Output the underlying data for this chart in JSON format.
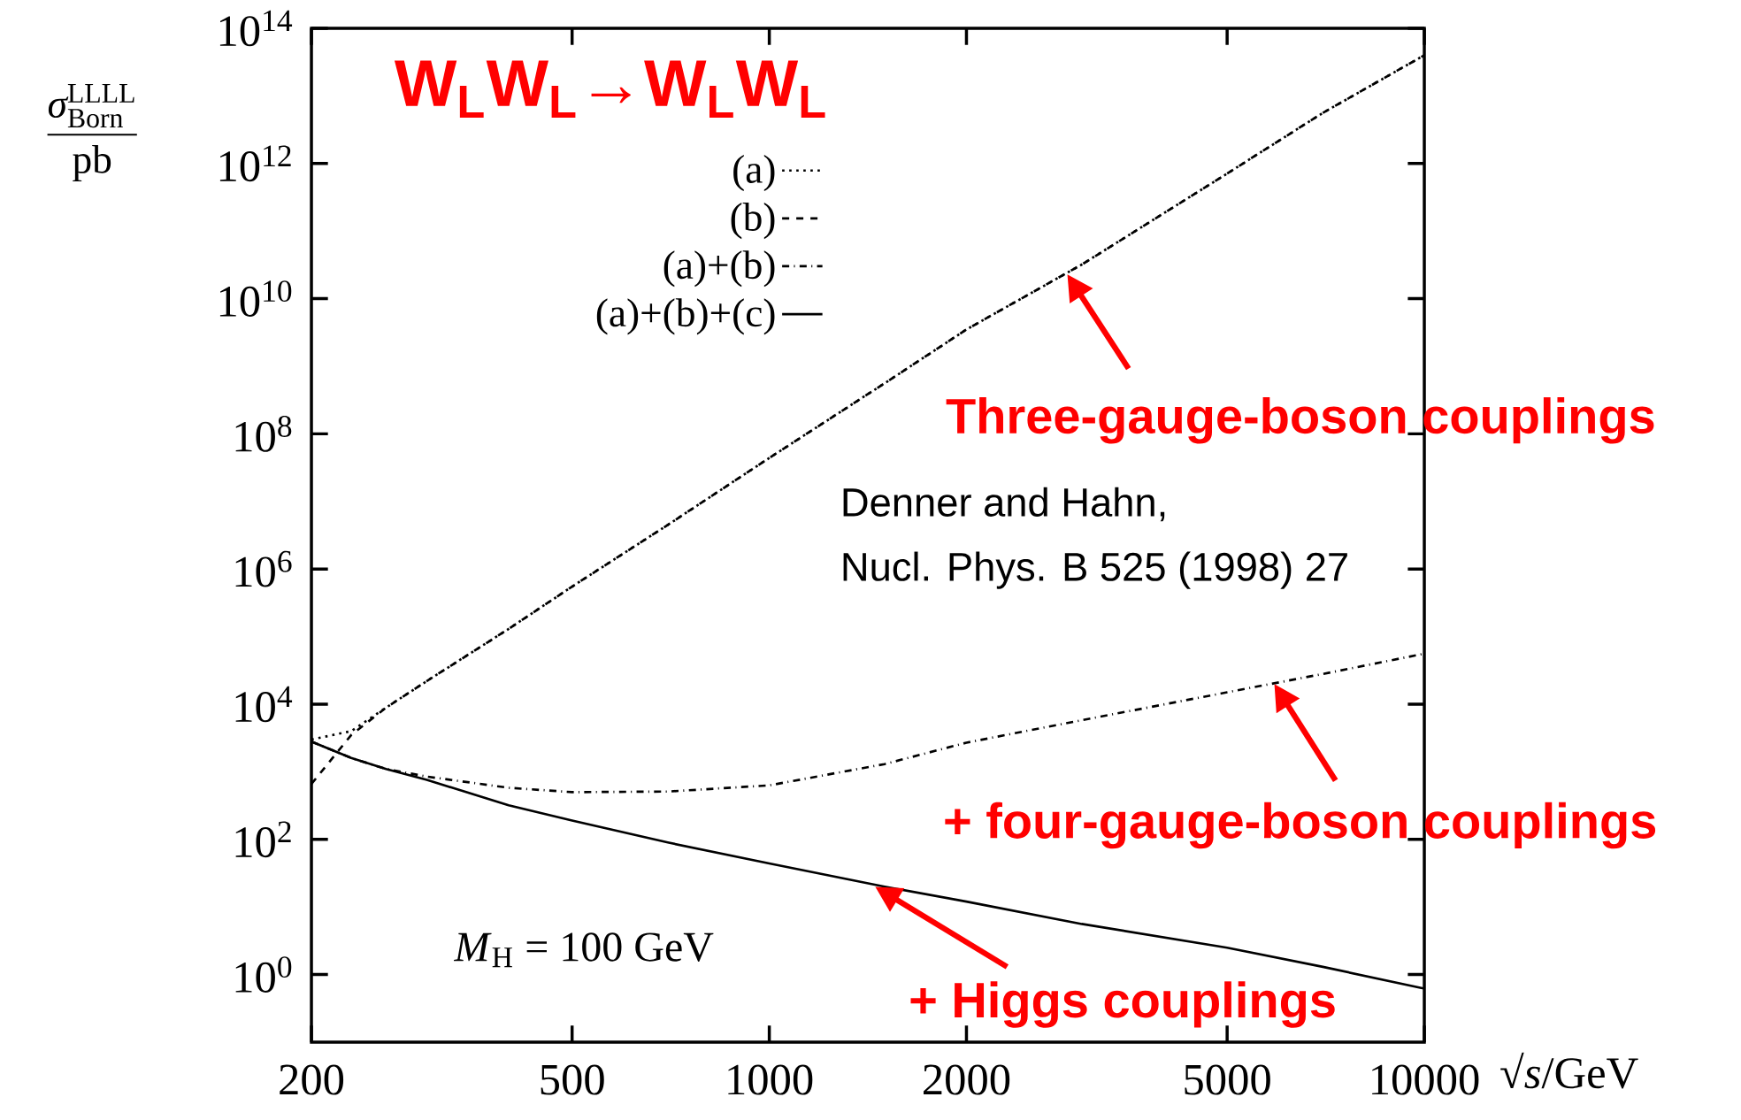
{
  "chart_data": {
    "type": "line",
    "title": "W$_{L}$W$_{L}$→W$_{L}$W$_{L}$",
    "xlabel": "√*s*/GeV",
    "ylabel": "\\frac{\\textit{σ}^{\\text{LLLL}}_{\\text{Born}}}{\\text{pb}}",
    "log": "xy",
    "legend": "top left",
    "grid": false,
    "xlim": [
      200,
      10000
    ],
    "ylim": [
      0.1,
      100000000000000.0
    ],
    "xticks": [
      200,
      500,
      1000,
      2000,
      5000,
      10000
    ],
    "yticks": [
      {
        "value": 1,
        "label": "10$^{0}$"
      },
      {
        "value": 100,
        "label": "10$^{2}$"
      },
      {
        "value": 10000,
        "label": "10$^{4}$"
      },
      {
        "value": 1000000,
        "label": "10$^{6}$"
      },
      {
        "value": 100000000,
        "label": "10$^{8}$"
      },
      {
        "value": 10000000000,
        "label": "10$^{10}$"
      },
      {
        "value": 1000000000000,
        "label": "10$^{12}$"
      },
      {
        "value": 100000000000000,
        "label": "10$^{14}$"
      }
    ],
    "x": [
      200,
      230,
      260,
      300,
      400,
      500,
      700,
      1000,
      1500,
      2000,
      3000,
      5000,
      7000,
      10000
    ],
    "series": [
      {
        "name": "(a)",
        "color": "#000000",
        "line_style": "dotted",
        "values": [
          3000,
          4000,
          8900,
          22000,
          130000,
          550000,
          4500000,
          44000000,
          560000000,
          3500000000,
          32000000000,
          710000000000,
          5600000000000,
          40000000000000
        ]
      },
      {
        "name": "(b)",
        "color": "#000000",
        "line_style": "dashed",
        "values": [
          660,
          3500,
          8900,
          22000,
          130000,
          550000,
          4500000,
          44000000,
          560000000,
          3500000000,
          32000000000,
          710000000000,
          5600000000000,
          40000000000000
        ]
      },
      {
        "name": "(a)+(b)",
        "color": "#000000",
        "line_style": "dashdot",
        "values": [
          2800,
          1600,
          1100,
          850,
          580,
          500,
          510,
          630,
          1300,
          2700,
          5800,
          15000,
          28000,
          56000
        ]
      },
      {
        "name": "(a)+(b)+(c)",
        "color": "#000000",
        "line_style": "solid",
        "values": [
          2800,
          1600,
          1100,
          760,
          320,
          190,
          90,
          44,
          20,
          12,
          5.6,
          2.5,
          1.3,
          0.62
        ]
      }
    ],
    "annotations": [
      "Denner and Hahn,",
      "Nucl. Phys. B 525 (1998) 27",
      "*M*$_{H}$ = 100 GeV",
      {
        "text": "Three-gauge-boson couplings",
        "x": 2850,
        "y": 23000000000
      },
      {
        "text": "+ four-gauge-boson couplings",
        "x": 5900,
        "y": 20000
      },
      {
        "text": "+ Higgs couplings",
        "x": 1450,
        "y": 20
      }
    ]
  }
}
